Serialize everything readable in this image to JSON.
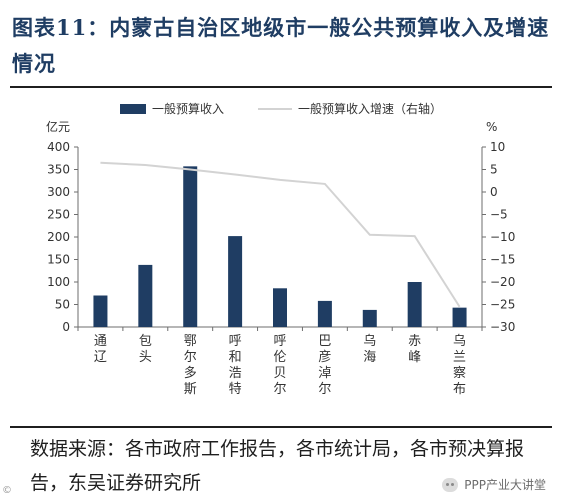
{
  "title": "图表11：内蒙古自治区地级市一般公共预算收入及增速情况",
  "source": "数据来源：各市政府工作报告，各市统计局，各市预决算报告，东吴证券研究所",
  "watermark": {
    "text": "PPP产业大讲堂",
    "icon": "chat-bubble-icon"
  },
  "corner_mark": "©",
  "colors": {
    "bar": "#1f3d63",
    "line": "#d3d3d3",
    "title": "#1f3d63",
    "axis": "#6e6e6e"
  },
  "chart_data": {
    "type": "bar",
    "categories": [
      "通辽",
      "包头",
      "鄂尔多斯",
      "呼和浩特",
      "呼伦贝尔",
      "巴彦淖尔",
      "乌海",
      "赤峰",
      "乌兰察布"
    ],
    "series": [
      {
        "name": "一般预算收入",
        "type": "bar",
        "axis": "left",
        "values": [
          70,
          138,
          357,
          202,
          86,
          58,
          38,
          100,
          43
        ]
      },
      {
        "name": "一般预算收入增速（右轴）",
        "type": "line",
        "axis": "right",
        "values": [
          6.5,
          6.0,
          5.0,
          3.9,
          2.7,
          1.8,
          -9.5,
          -9.8,
          -25.5
        ]
      }
    ],
    "y_left": {
      "unit": "亿元",
      "min": 0,
      "max": 400,
      "ticks": [
        0,
        50,
        100,
        150,
        200,
        250,
        300,
        350,
        400
      ]
    },
    "y_right": {
      "unit": "%",
      "min": -30,
      "max": 10,
      "ticks": [
        -30,
        -25,
        -20,
        -15,
        -10,
        -5,
        0,
        5,
        10
      ]
    },
    "legend_position": "top",
    "grid": false
  }
}
